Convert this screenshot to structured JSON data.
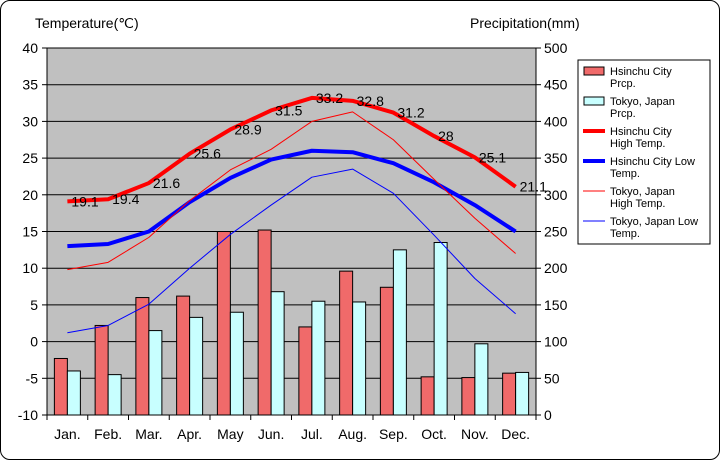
{
  "chart_data": {
    "type": "bar+line",
    "title": "",
    "ylabel_left": "Temperature(℃)",
    "ylabel_right": "Precipitation(mm)",
    "categories": [
      "Jan.",
      "Feb.",
      "Mar.",
      "Apr.",
      "May",
      "Jun.",
      "Jul.",
      "Aug.",
      "Sep.",
      "Oct.",
      "Nov.",
      "Dec."
    ],
    "ylim_left": [
      -10,
      40
    ],
    "ylim_right": [
      0,
      500
    ],
    "left_ticks": [
      -10,
      -5,
      0,
      5,
      10,
      15,
      20,
      25,
      30,
      35,
      40
    ],
    "right_ticks": [
      0,
      50,
      100,
      150,
      200,
      250,
      300,
      350,
      400,
      450,
      500
    ],
    "grid": true,
    "legend_position": "right",
    "bar_series": [
      {
        "name": "Hsinchu City Prcp.",
        "color": "#f06a6a",
        "axis": "right",
        "values": [
          77,
          122,
          160,
          162,
          250,
          252,
          120,
          196,
          174,
          52,
          51,
          57
        ]
      },
      {
        "name": "Tokyo, Japan Prcp.",
        "color": "#c8ffff",
        "axis": "right",
        "values": [
          60,
          55,
          115,
          133,
          140,
          168,
          155,
          154,
          225,
          235,
          97,
          58
        ]
      }
    ],
    "line_series": [
      {
        "name": "Hsinchu City High Temp.",
        "color": "#ff0000",
        "width": 4,
        "axis": "left",
        "values": [
          19.1,
          19.4,
          21.6,
          25.6,
          28.9,
          31.5,
          33.2,
          32.8,
          31.2,
          28,
          25.1,
          21.1
        ],
        "labels": [
          "19.1",
          "19.4",
          "21.6",
          "25.6",
          "28.9",
          "31.5",
          "33.2",
          "32.8",
          "31.2",
          "28",
          "25.1",
          "21.1"
        ]
      },
      {
        "name": "Hsinchu City Low Temp.",
        "color": "#0000ff",
        "width": 4,
        "axis": "left",
        "values": [
          13.0,
          13.3,
          15.0,
          19.0,
          22.3,
          24.8,
          26.0,
          25.8,
          24.3,
          21.7,
          18.6,
          15.0
        ]
      },
      {
        "name": "Tokyo, Japan High Temp.",
        "color": "#ff0000",
        "width": 1,
        "axis": "left",
        "values": [
          9.8,
          10.8,
          14.2,
          19.2,
          23.4,
          26.2,
          30.0,
          31.3,
          27.5,
          22.1,
          16.8,
          12.0
        ]
      },
      {
        "name": "Tokyo, Japan Low Temp.",
        "color": "#0000ff",
        "width": 1,
        "axis": "left",
        "values": [
          1.2,
          2.2,
          5.1,
          10.0,
          14.6,
          18.6,
          22.4,
          23.5,
          20.2,
          14.5,
          8.6,
          3.8
        ]
      }
    ],
    "legend": [
      {
        "label": "Hsinchu City Prcp.",
        "kind": "bar",
        "color": "#f06a6a"
      },
      {
        "label": "Tokyo, Japan Prcp.",
        "kind": "bar",
        "color": "#c8ffff"
      },
      {
        "label": "Hsinchu City High Temp.",
        "kind": "line",
        "color": "#ff0000",
        "width": 4
      },
      {
        "label": "Hsinchu City Low Temp.",
        "kind": "line",
        "color": "#0000ff",
        "width": 4
      },
      {
        "label": "Tokyo, Japan High Temp.",
        "kind": "line",
        "color": "#ff0000",
        "width": 1
      },
      {
        "label": "Tokyo, Japan Low Temp.",
        "kind": "line",
        "color": "#0000ff",
        "width": 1
      }
    ]
  }
}
